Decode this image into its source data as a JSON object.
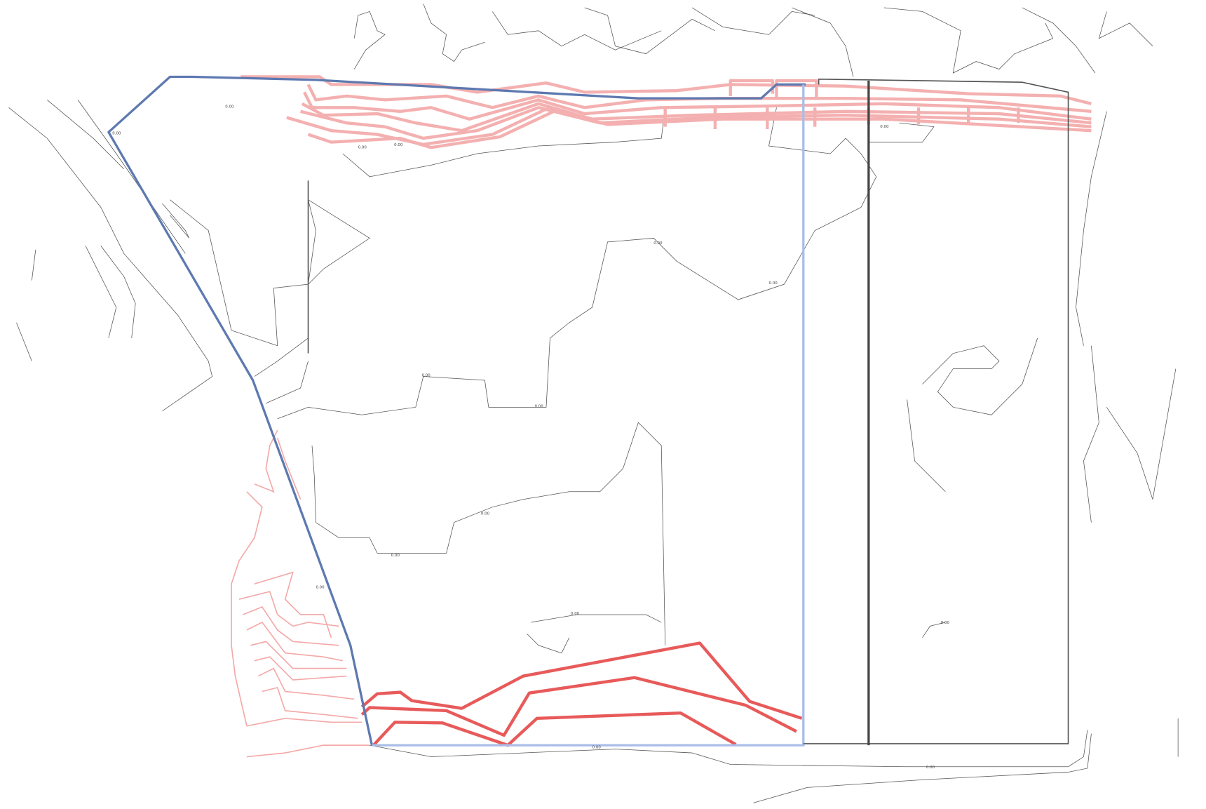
{
  "contour_labels": [
    "0.00",
    "0.00",
    "0.00",
    "0.00",
    "0.00",
    "0.00",
    "0.00",
    "0.00",
    "0.00",
    "0.00",
    "0.00",
    "0.00",
    "0.00",
    "0.00",
    "0.00",
    "0.00"
  ]
}
